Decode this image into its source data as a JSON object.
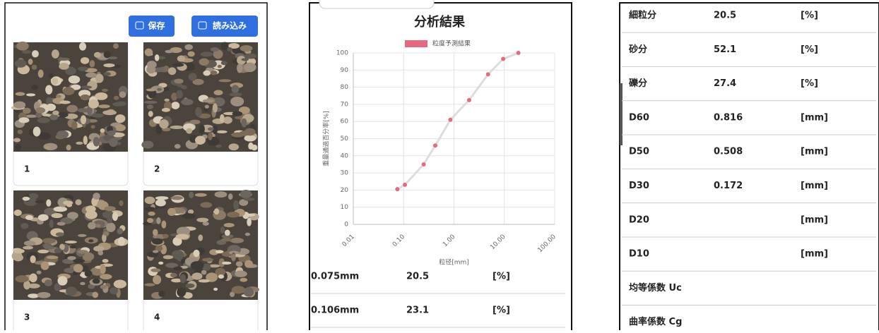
{
  "panel1": {
    "buttons": [
      "保存",
      "読み込み"
    ],
    "cards": [
      "1",
      "2",
      "3",
      "4"
    ]
  },
  "panel2": {
    "chart_data": {
      "type": "line",
      "title": "分析結果",
      "x_label": "粒径[mm]",
      "y_label": "重量通過百分率[%]",
      "log_x": true,
      "grid": true,
      "legend": "top",
      "x": [
        0.075,
        0.106,
        0.25,
        0.425,
        0.85,
        2,
        4.75,
        9.5,
        19
      ],
      "series": [
        {
          "name": "粒度予測結果",
          "color": "#e8697f",
          "values": [
            20.5,
            23.1,
            35,
            46,
            61,
            72.5,
            87.5,
            96.5,
            100
          ]
        }
      ],
      "xlim": [
        0.01,
        100
      ],
      "xticks": [
        0.01,
        {
          "value": 0.1,
          "label": "0.10"
        },
        {
          "value": 1,
          "label": "1.00"
        },
        {
          "value": 10,
          "label": "10.00"
        },
        {
          "value": 100,
          "label": "100.00"
        }
      ],
      "ylim": [
        0,
        100
      ],
      "yticks": [
        0,
        10,
        20,
        30,
        40,
        50,
        60,
        70,
        80,
        90,
        100
      ]
    },
    "table": {
      "rows": [
        {
          "label": "0.075mm",
          "value": "20.5",
          "unit": "[%]"
        },
        {
          "label": "0.106mm",
          "value": "23.1",
          "unit": "[%]"
        }
      ]
    }
  },
  "panel3": {
    "table": {
      "rows": [
        {
          "label": "細粒分",
          "value": "20.5",
          "unit": "[%]"
        },
        {
          "label": "砂分",
          "value": "52.1",
          "unit": "[%]"
        },
        {
          "label": "礫分",
          "value": "27.4",
          "unit": "[%]"
        },
        {
          "label": "D60",
          "value": "0.816",
          "unit": "[mm]"
        },
        {
          "label": "D50",
          "value": "0.508",
          "unit": "[mm]"
        },
        {
          "label": "D30",
          "value": "0.172",
          "unit": "[mm]"
        },
        {
          "label": "D20",
          "unit": "[mm]"
        },
        {
          "label": "D10",
          "unit": "[mm]"
        },
        {
          "label": "均等係数 Uc"
        },
        {
          "label": "曲率係数 Cg"
        }
      ]
    }
  }
}
